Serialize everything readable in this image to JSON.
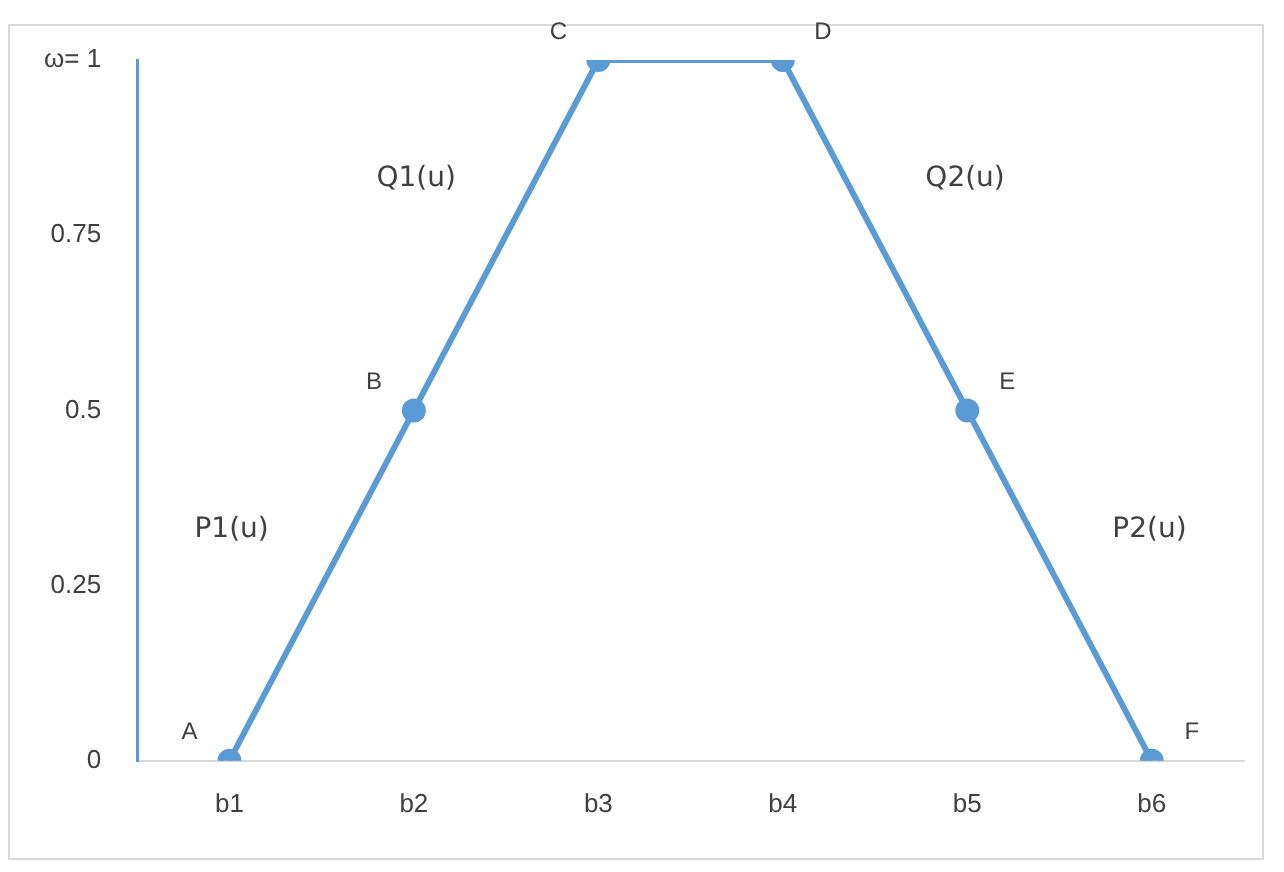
{
  "chart_data": {
    "type": "line",
    "categories": [
      "b1",
      "b2",
      "b3",
      "b4",
      "b5",
      "b6"
    ],
    "series": [
      {
        "color": "#5b9bd5",
        "values": [
          0,
          0.5,
          1,
          1,
          0.5,
          0
        ]
      }
    ],
    "ylim": [
      0,
      1
    ],
    "yticks": [
      0,
      0.25,
      0.5,
      0.75,
      {
        "value": 1,
        "label": "ω= 1"
      }
    ],
    "grid": false,
    "legend": false,
    "marker": "circle",
    "line_style": "solid",
    "annotations": [
      {
        "text": "A",
        "x": "b1",
        "y": 0
      },
      {
        "text": "B",
        "x": "b2",
        "y": 0.5
      },
      {
        "text": "C",
        "x": "b3",
        "y": 1
      },
      {
        "text": "D",
        "x": "b4",
        "y": 1
      },
      {
        "text": "E",
        "x": "b5",
        "y": 0.5
      },
      {
        "text": "F",
        "x": "b6",
        "y": 0
      },
      "P1(u)",
      "Q1(u)",
      "Q2(u)",
      "P2(u)"
    ]
  }
}
